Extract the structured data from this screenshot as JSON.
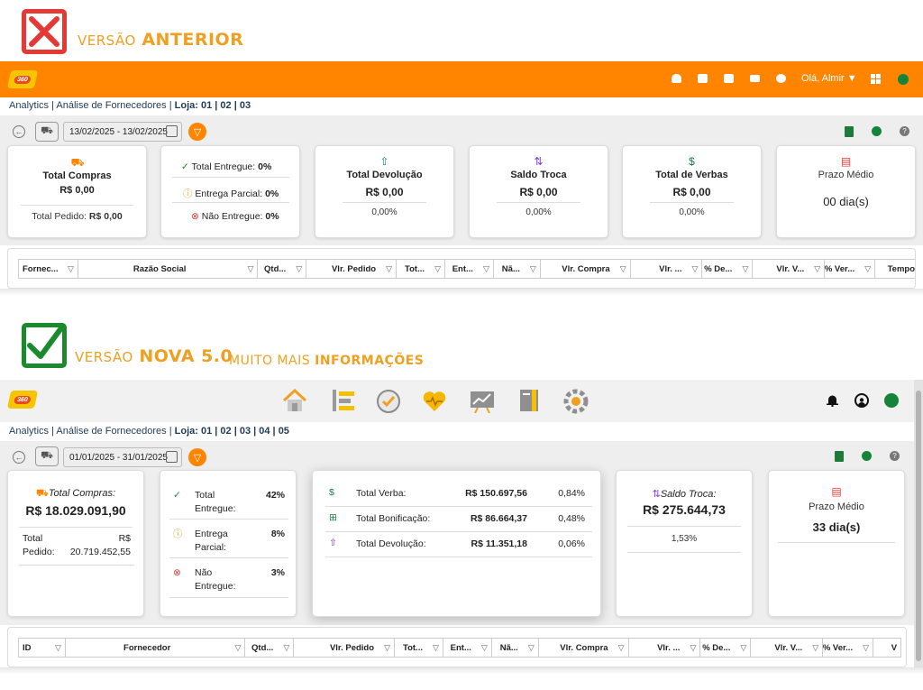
{
  "old_version": {
    "heading_prefix": "VERSÃO",
    "heading_main": "ANTERIOR",
    "logo_text": "360",
    "header": {
      "greeting": "Olá, Almir"
    },
    "breadcrumb": {
      "path": "Analytics | Análise de Fornecedores | ",
      "store": "Loja: 01 | 02 | 03"
    },
    "date_range": "13/02/2025 - 13/02/2025",
    "cards": {
      "compras": {
        "title": "Total Compras",
        "value": "R$ 0,00",
        "pedido_label": "Total Pedido:",
        "pedido_value": "R$ 0,00"
      },
      "status": {
        "entregue_label": "Total Entregue:",
        "entregue_value": "0%",
        "parcial_label": "Entrega Parcial:",
        "parcial_value": "0%",
        "nao_label": "Não Entregue:",
        "nao_value": "0%"
      },
      "devolucao": {
        "title": "Total Devolução",
        "value": "R$ 0,00",
        "pct": "0,00%"
      },
      "troca": {
        "title": "Saldo Troca",
        "value": "R$ 0,00",
        "pct": "0,00%"
      },
      "verbas": {
        "title": "Total de Verbas",
        "value": "R$ 0,00",
        "pct": "0,00%"
      },
      "prazo": {
        "title": "Prazo Médio",
        "value": "00 dia(s)"
      }
    },
    "table_columns": [
      "Fornec...",
      "Razão Social",
      "Qtd...",
      "Vlr. Pedido",
      "Tot...",
      "Ent...",
      "Nã...",
      "Vlr. Compra",
      "Vlr. ...",
      "% De...",
      "Vlr. V...",
      "% Ver...",
      "Tempo"
    ]
  },
  "new_version": {
    "heading_prefix": "VERSÃO",
    "heading_main": "NOVA 5.0",
    "tagline_prefix": "MUITO MAIS",
    "tagline_main": "INFORMAÇÕES",
    "logo_text": "360",
    "nav_icons": [
      "home-icon",
      "list-icon",
      "check-clock-icon",
      "heart-pulse-icon",
      "chart-board-icon",
      "notebook-icon",
      "gear-icon"
    ],
    "breadcrumb": {
      "path": "Analytics | Análise de Fornecedores | ",
      "store": "Loja: 01 | 02 | 03 | 04 | 05"
    },
    "date_range": "01/01/2025 - 31/01/2025",
    "cards": {
      "compras": {
        "title": "Total Compras:",
        "value": "R$ 18.029.091,90",
        "pedido_label_1": "Total",
        "pedido_label_2": "Pedido:",
        "pedido_value_1": "R$",
        "pedido_value_2": "20.719.452,55"
      },
      "status": {
        "entregue_1": "Total",
        "entregue_2": "Entregue:",
        "entregue_value": "42%",
        "parcial_1": "Entrega",
        "parcial_2": "Parcial:",
        "parcial_value": "8%",
        "nao_1": "Não",
        "nao_2": "Entregue:",
        "nao_value": "3%"
      },
      "verbas": [
        {
          "label": "Total Verba:",
          "value": "R$ 150.697,56",
          "pct": "0,84%"
        },
        {
          "label": "Total Bonificação:",
          "value": "R$ 86.664,37",
          "pct": "0,48%"
        },
        {
          "label": "Total Devolução:",
          "value": "R$ 11.351,18",
          "pct": "0,06%"
        }
      ],
      "troca": {
        "title": "Saldo Troca:",
        "value": "R$ 275.644,73",
        "pct": "1,53%"
      },
      "prazo": {
        "title": "Prazo Médio",
        "value": "33 dia(s)"
      }
    },
    "table_columns": [
      "ID",
      "Fornecedor",
      "Qtd...",
      "Vlr. Pedido",
      "Tot...",
      "Ent...",
      "Nã...",
      "Vlr. Compra",
      "Vlr. ...",
      "% De...",
      "Vlr. V...",
      "% Ver...",
      "V"
    ]
  },
  "colors": {
    "orange": "#ff8400",
    "green": "#14843a",
    "red": "#e53935",
    "gold": "#f0a020"
  }
}
